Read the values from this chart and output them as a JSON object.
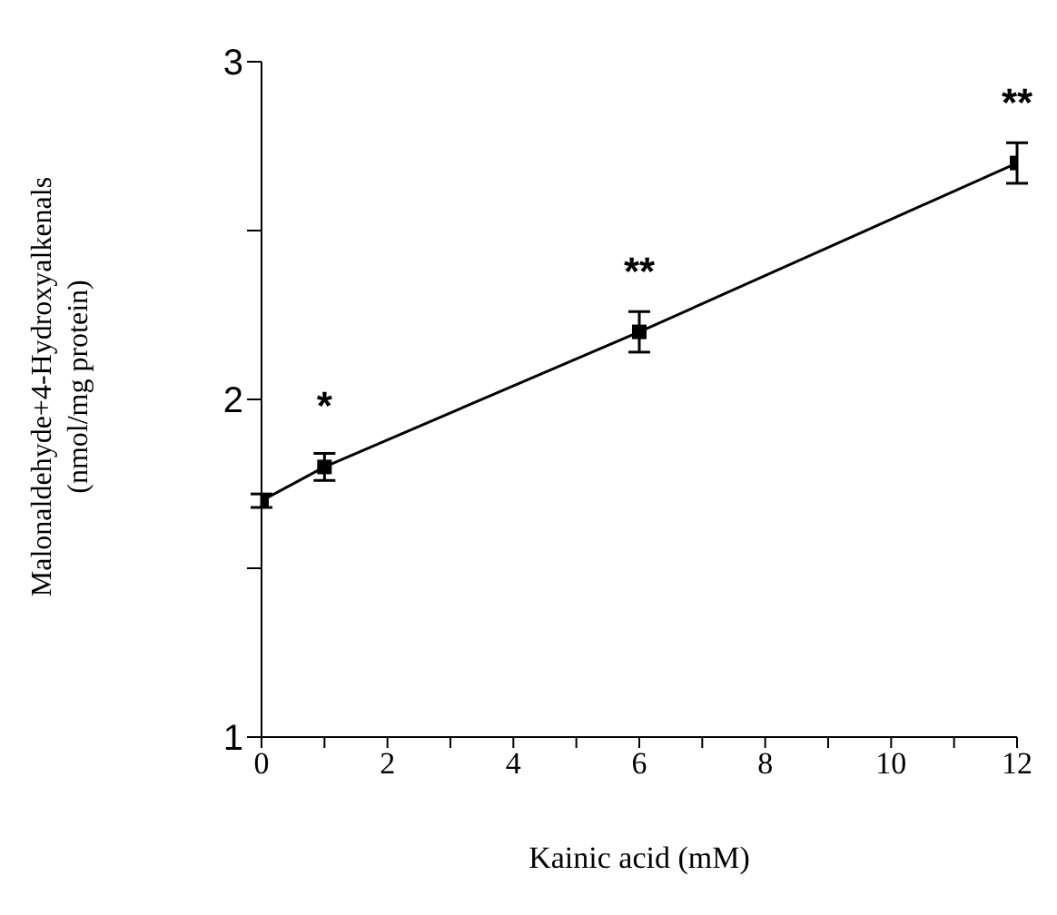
{
  "chart_data": {
    "type": "line",
    "xlabel": "Kainic acid (mM)",
    "ylabel": "Malonaldehyde+4-Hydroxyalkenals\n(nmol/mg protein)",
    "x": [
      0,
      1,
      6,
      12
    ],
    "series": [
      {
        "color": "#000000",
        "values": [
          1.7,
          1.8,
          2.2,
          2.7
        ],
        "errors": [
          0.02,
          0.04,
          0.06,
          0.06
        ]
      }
    ],
    "xlim": [
      0,
      12
    ],
    "xticks": [
      0,
      {
        "value": 1,
        "label": null
      },
      2,
      {
        "value": 3,
        "label": null
      },
      4,
      {
        "value": 5,
        "label": null
      },
      6,
      {
        "value": 7,
        "label": null
      },
      8,
      {
        "value": 9,
        "label": null
      },
      10,
      {
        "value": 11,
        "label": null
      },
      12
    ],
    "ylim": [
      1,
      3
    ],
    "yticks": [
      1,
      {
        "value": 1.5,
        "label": null
      },
      2,
      {
        "value": 2.5,
        "label": null
      },
      3
    ],
    "marker": "square",
    "line_style": "solid",
    "annotations": [
      {
        "text": "*",
        "x": 1,
        "y": 1.8
      },
      {
        "text": "**",
        "x": 6,
        "y": 2.2
      },
      {
        "text": "**",
        "x": 12,
        "y": 2.7
      }
    ]
  }
}
